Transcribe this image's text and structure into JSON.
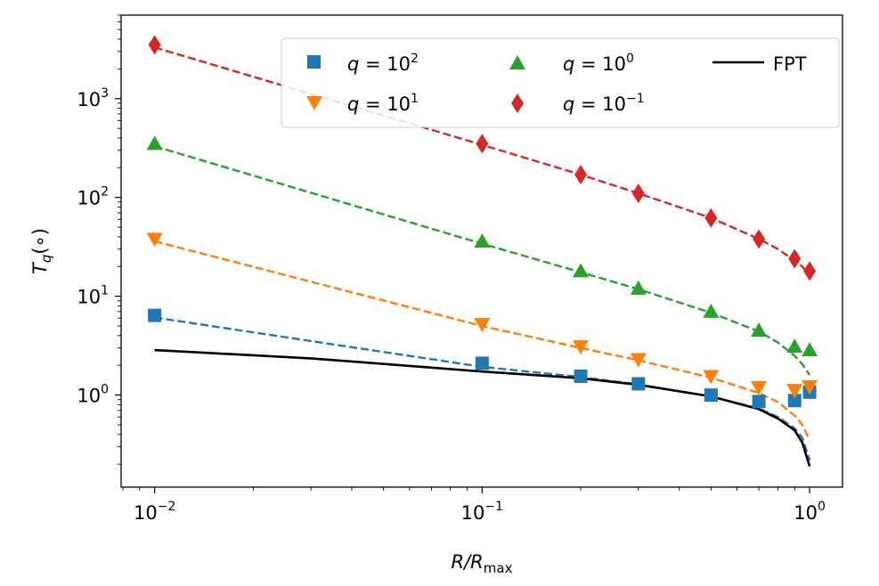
{
  "chart_data": {
    "type": "scatter",
    "xscale": "log",
    "yscale": "log",
    "xlim": [
      0.0079,
      1.26
    ],
    "ylim": [
      0.117,
      7000
    ],
    "x_ticks": [
      {
        "value": 0.01,
        "base": "10",
        "exp": "−2"
      },
      {
        "value": 0.1,
        "base": "10",
        "exp": "−1"
      },
      {
        "value": 1,
        "base": "10",
        "exp": "0"
      }
    ],
    "y_ticks": [
      {
        "value": 1,
        "base": "10",
        "exp": "0"
      },
      {
        "value": 10,
        "base": "10",
        "exp": "1"
      },
      {
        "value": 100,
        "base": "10",
        "exp": "2"
      },
      {
        "value": 1000,
        "base": "10",
        "exp": "3"
      }
    ],
    "xlabel": {
      "main": "R/R",
      "sub": "max"
    },
    "ylabel": {
      "main": "T",
      "sub": "q",
      "suffix": "(∘)"
    },
    "legend_position": "top-right",
    "series": [
      {
        "name": "q = 10^2",
        "label": {
          "lhs": "q = ",
          "base": "10",
          "exp": "2"
        },
        "marker": "square",
        "color": "#1f77b4",
        "points": {
          "x": [
            0.01,
            0.1,
            0.2,
            0.3,
            0.5,
            0.7,
            0.9,
            1.0
          ],
          "y": [
            6.4,
            2.1,
            1.55,
            1.3,
            1.0,
            0.86,
            0.88,
            1.07
          ]
        },
        "fit": {
          "x": [
            0.01,
            0.1,
            0.2,
            0.3,
            0.5,
            0.7,
            0.8,
            0.9,
            0.95,
            1.0
          ],
          "y": [
            6.1,
            1.93,
            1.52,
            1.28,
            0.97,
            0.73,
            0.6,
            0.46,
            0.37,
            0.22
          ]
        }
      },
      {
        "name": "q = 10^1",
        "label": {
          "lhs": "q = ",
          "base": "10",
          "exp": "1"
        },
        "marker": "triangle-down",
        "color": "#ff7f0e",
        "points": {
          "x": [
            0.01,
            0.1,
            0.2,
            0.3,
            0.5,
            0.7,
            0.9,
            1.0
          ],
          "y": [
            38,
            5.2,
            3.1,
            2.3,
            1.55,
            1.2,
            1.12,
            1.22
          ]
        },
        "fit": {
          "x": [
            0.01,
            0.1,
            0.2,
            0.3,
            0.5,
            0.7,
            0.8,
            0.9,
            0.95,
            1.0
          ],
          "y": [
            36,
            5.0,
            3.0,
            2.25,
            1.5,
            1.05,
            0.85,
            0.62,
            0.5,
            0.35
          ]
        }
      },
      {
        "name": "q = 10^0",
        "label": {
          "lhs": "q = ",
          "base": "10",
          "exp": "0"
        },
        "marker": "triangle-up",
        "color": "#2ca02c",
        "points": {
          "x": [
            0.01,
            0.1,
            0.2,
            0.3,
            0.5,
            0.7,
            0.9,
            1.0
          ],
          "y": [
            350,
            36,
            18,
            12,
            7,
            4.5,
            3.1,
            2.85
          ]
        },
        "fit": {
          "x": [
            0.01,
            0.1,
            0.2,
            0.3,
            0.5,
            0.7,
            0.8,
            0.9,
            0.95,
            1.0
          ],
          "y": [
            330,
            34,
            17.5,
            11.8,
            6.8,
            4.4,
            3.4,
            2.5,
            2.05,
            1.6
          ]
        }
      },
      {
        "name": "q = 10^-1",
        "label": {
          "lhs": "q = ",
          "base": "10",
          "exp": "−1"
        },
        "marker": "diamond",
        "color": "#d62728",
        "points": {
          "x": [
            0.01,
            0.1,
            0.2,
            0.3,
            0.5,
            0.7,
            0.9,
            1.0
          ],
          "y": [
            3500,
            350,
            170,
            110,
            62,
            38,
            24,
            18
          ]
        },
        "fit": {
          "x": [
            0.01,
            0.1,
            0.2,
            0.3,
            0.5,
            0.7,
            0.8,
            0.9,
            0.95,
            1.0
          ],
          "y": [
            3300,
            340,
            170,
            110,
            62,
            38,
            30,
            23,
            20,
            16
          ]
        }
      },
      {
        "name": "FPT",
        "label": {
          "text": "FPT"
        },
        "marker": "line",
        "color": "#000000",
        "fit": {
          "x": [
            0.01,
            0.03,
            0.1,
            0.2,
            0.3,
            0.5,
            0.7,
            0.8,
            0.9,
            0.95,
            1.0
          ],
          "y": [
            2.85,
            2.35,
            1.73,
            1.48,
            1.27,
            0.97,
            0.72,
            0.58,
            0.44,
            0.33,
            0.19
          ]
        }
      }
    ]
  }
}
